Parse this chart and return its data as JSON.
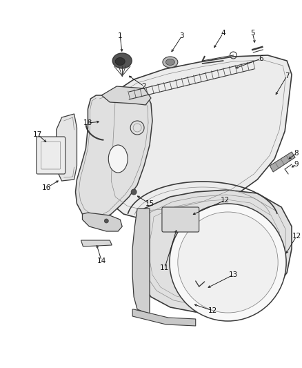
{
  "bg_color": "#ffffff",
  "fig_width": 4.38,
  "fig_height": 5.33,
  "dpi": 100,
  "line_color": "#3a3a3a",
  "light_line": "#888888",
  "fill_light": "#e8e8e8",
  "fill_mid": "#d0d0d0",
  "label_fs": 7.5,
  "label_color": "#111111"
}
